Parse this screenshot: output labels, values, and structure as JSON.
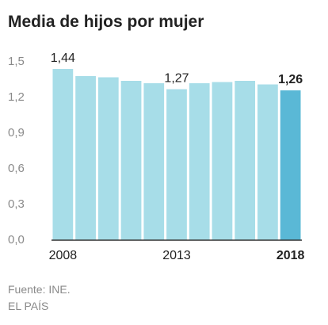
{
  "chart_data": {
    "type": "bar",
    "title": "Media de hijos por mujer",
    "categories": [
      "2008",
      "2009",
      "2010",
      "2011",
      "2012",
      "2013",
      "2014",
      "2015",
      "2016",
      "2017",
      "2018"
    ],
    "values": [
      1.44,
      1.38,
      1.37,
      1.34,
      1.32,
      1.27,
      1.32,
      1.33,
      1.34,
      1.31,
      1.26
    ],
    "x_tick_labels": [
      "2008",
      "2013",
      "2018"
    ],
    "y_ticks": [
      "1,5",
      "1,2",
      "0,9",
      "0,6",
      "0,3",
      "0,0"
    ],
    "data_labels": [
      {
        "category": "2008",
        "text": "1,44"
      },
      {
        "category": "2013",
        "text": "1,27"
      },
      {
        "category": "2018",
        "text": "1,26"
      }
    ],
    "ylim": [
      0,
      1.5
    ],
    "highlight": "2018",
    "colors": {
      "bar": "#a7dde8",
      "highlight": "#5ab8d6",
      "axis": "#333333",
      "text": "#333333",
      "tick": "#8a8a8a"
    },
    "xlabel": "",
    "ylabel": ""
  },
  "footer": {
    "source": "Fuente: INE.",
    "brand": "EL PAÍS"
  }
}
